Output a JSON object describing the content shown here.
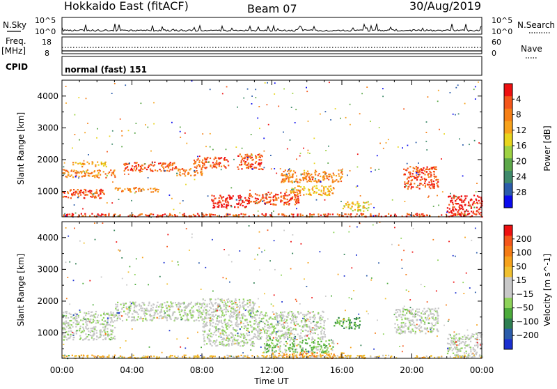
{
  "header": {
    "title": "Hokkaido East (fitACF)",
    "beam": "Beam 07",
    "date": "30/Aug/2019"
  },
  "strip_nsky": {
    "label": "N.Sky",
    "right_label": "N.Search",
    "left_ticks": [
      "10^5",
      "10^0"
    ],
    "right_ticks": [
      "10^5",
      "10^0"
    ]
  },
  "strip_freq": {
    "label_top": "Freq.",
    "label_unit": "[MHz]",
    "right_label": "Nave",
    "left_ticks": [
      "18",
      "8"
    ],
    "right_ticks": [
      "60",
      "0"
    ]
  },
  "strip_cpid": {
    "label": "CPID",
    "value": "normal (fast) 151"
  },
  "time_axis": {
    "ticks": [
      "00:00",
      "04:00",
      "08:00",
      "12:00",
      "16:00",
      "20:00",
      "00:00"
    ],
    "label": "Time UT"
  },
  "chart_data": [
    {
      "type": "heatmap",
      "panel": "power",
      "ylabel": "Slant Range [km]",
      "yticks": [
        1000,
        2000,
        3000,
        4000
      ],
      "ylim": [
        200,
        4500
      ],
      "xlim_hours": [
        0,
        24
      ],
      "colorbar": {
        "label": "Power [dB]",
        "ticks": [
          "4",
          "8",
          "12",
          "16",
          "20",
          "24",
          "28"
        ],
        "colors": [
          "#0a0aee",
          "#2b5caa",
          "#3f8a6b",
          "#5da84a",
          "#9ed243",
          "#e8d51d",
          "#f7a21c",
          "#f67f15",
          "#f4561a",
          "#ee1010"
        ]
      },
      "regions": [
        {
          "t0": 0.0,
          "t1": 2.5,
          "r0": 800,
          "r1": 1100,
          "level": 8
        },
        {
          "t0": 0.0,
          "t1": 3.0,
          "r0": 1450,
          "r1": 1700,
          "level": 7
        },
        {
          "t0": 0.5,
          "t1": 2.5,
          "r0": 1800,
          "r1": 1950,
          "level": 6
        },
        {
          "t0": 3.0,
          "t1": 5.5,
          "r0": 1000,
          "r1": 1150,
          "level": 7
        },
        {
          "t0": 3.5,
          "t1": 6.5,
          "r0": 1650,
          "r1": 1950,
          "level": 8
        },
        {
          "t0": 6.5,
          "t1": 8.0,
          "r0": 1500,
          "r1": 1750,
          "level": 7
        },
        {
          "t0": 7.5,
          "t1": 9.5,
          "r0": 1750,
          "r1": 2100,
          "level": 8
        },
        {
          "t0": 10.0,
          "t1": 11.5,
          "r0": 1700,
          "r1": 2200,
          "level": 8
        },
        {
          "t0": 8.5,
          "t1": 10.5,
          "r0": 500,
          "r1": 900,
          "level": 9
        },
        {
          "t0": 10.5,
          "t1": 13.5,
          "r0": 600,
          "r1": 1000,
          "level": 8
        },
        {
          "t0": 12.5,
          "t1": 16.0,
          "r0": 1300,
          "r1": 1700,
          "level": 7
        },
        {
          "t0": 13.0,
          "t1": 15.5,
          "r0": 900,
          "r1": 1200,
          "level": 6
        },
        {
          "t0": 16.0,
          "t1": 17.5,
          "r0": 400,
          "r1": 700,
          "level": 5
        },
        {
          "t0": 19.5,
          "t1": 21.5,
          "r0": 1100,
          "r1": 1800,
          "level": 8
        },
        {
          "t0": 22.0,
          "t1": 24.0,
          "r0": 250,
          "r1": 900,
          "level": 9
        },
        {
          "t0": 0.0,
          "t1": 24.0,
          "r0": 220,
          "r1": 320,
          "level": 8
        }
      ]
    },
    {
      "type": "heatmap",
      "panel": "velocity",
      "ylabel": "Slant Range [km]",
      "yticks": [
        1000,
        2000,
        3000,
        4000
      ],
      "ylim": [
        200,
        4500
      ],
      "xlim_hours": [
        0,
        24
      ],
      "colorbar": {
        "label": "Velocity [m s^-1]",
        "ticks": [
          "200",
          "100",
          "50",
          "15",
          "−15",
          "−50",
          "−100",
          "−200"
        ],
        "colors": [
          "#1a2fd0",
          "#2b5caa",
          "#2f7f52",
          "#4cab3b",
          "#8ed35a",
          "#c8c8c8",
          "#c8c8c8",
          "#f0c030",
          "#f6a21c",
          "#f47b14",
          "#f4561a",
          "#ee1010"
        ]
      },
      "regions": [
        {
          "t0": 0.0,
          "t1": 3.0,
          "r0": 800,
          "r1": 1700,
          "level": 5
        },
        {
          "t0": 3.0,
          "t1": 8.0,
          "r0": 1400,
          "r1": 2000,
          "level": 5
        },
        {
          "t0": 8.0,
          "t1": 11.0,
          "r0": 600,
          "r1": 2100,
          "level": 5
        },
        {
          "t0": 11.0,
          "t1": 15.0,
          "r0": 800,
          "r1": 1700,
          "level": 5
        },
        {
          "t0": 11.5,
          "t1": 15.5,
          "r0": 400,
          "r1": 800,
          "level": 4
        },
        {
          "t0": 15.5,
          "t1": 17.0,
          "r0": 1150,
          "r1": 1500,
          "level": 3
        },
        {
          "t0": 12.0,
          "t1": 16.5,
          "r0": 250,
          "r1": 400,
          "level": 8
        },
        {
          "t0": 19.0,
          "t1": 21.5,
          "r0": 1000,
          "r1": 1800,
          "level": 5
        },
        {
          "t0": 22.0,
          "t1": 24.0,
          "r0": 250,
          "r1": 1000,
          "level": 5
        },
        {
          "t0": 0.0,
          "t1": 24.0,
          "r0": 220,
          "r1": 320,
          "level": 7
        }
      ]
    }
  ]
}
